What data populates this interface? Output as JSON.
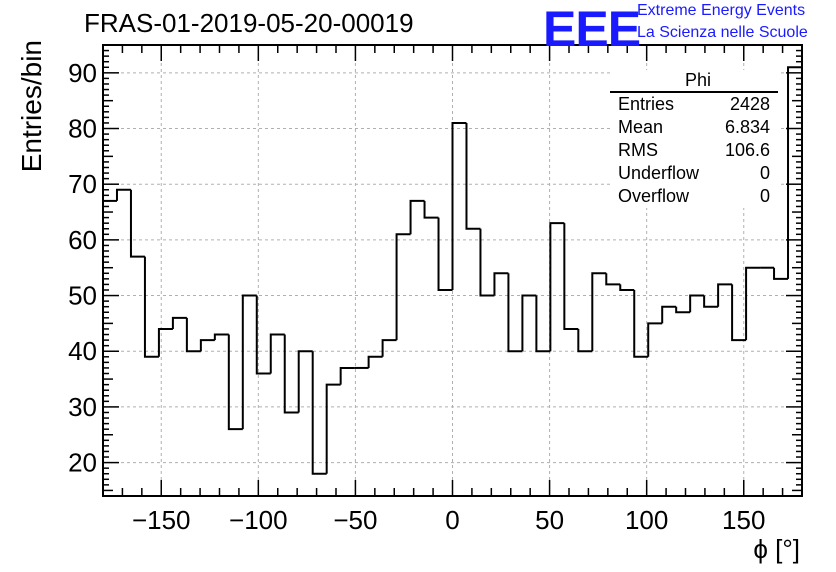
{
  "header": {
    "run_id": "FRAS-01-2019-05-20-00019",
    "logo_text": "EEE",
    "tagline_line1": "Extreme Energy Events",
    "tagline_line2": "La Scienza nelle Scuole",
    "logo_color": "#1a1aff"
  },
  "stats_box": {
    "title": "Phi",
    "rows": [
      {
        "label": "Entries",
        "value": "2428"
      },
      {
        "label": "Mean",
        "value": "6.834"
      },
      {
        "label": "RMS",
        "value": "106.6"
      },
      {
        "label": "Underflow",
        "value": "0"
      },
      {
        "label": "Overflow",
        "value": "0"
      }
    ]
  },
  "chart_data": {
    "type": "bar",
    "style": "step histogram",
    "title": "",
    "xlabel": "ϕ [°]",
    "ylabel": "Entries/bin",
    "xlim": [
      -180,
      180
    ],
    "ylim": [
      14,
      95
    ],
    "xticks": [
      -150,
      -100,
      -50,
      0,
      50,
      100,
      150
    ],
    "yticks": [
      20,
      30,
      40,
      50,
      60,
      70,
      80,
      90
    ],
    "grid": true,
    "line_color": "#000000",
    "bin_width": 7.2,
    "values": [
      67,
      69,
      57,
      39,
      44,
      46,
      40,
      42,
      43,
      26,
      50,
      36,
      43,
      29,
      40,
      18,
      34,
      37,
      37,
      39,
      42,
      61,
      67,
      64,
      51,
      81,
      62,
      50,
      54,
      40,
      50,
      40,
      63,
      44,
      40,
      54,
      52,
      51,
      39,
      45,
      48,
      47,
      50,
      48,
      52,
      42,
      55,
      55,
      53,
      91
    ]
  }
}
